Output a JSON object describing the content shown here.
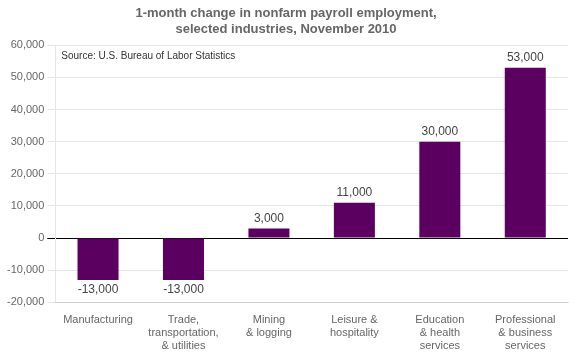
{
  "chart_data": {
    "type": "bar",
    "title": "1-month change in nonfarm payroll employment,\nselected industries, November 2010",
    "annotation": "Source: U.S. Bureau of Labor Statistics",
    "categories": [
      "Manufacturing",
      "Trade,\ntransportation,\n& utilities",
      "Mining\n& logging",
      "Leisure &\nhospitality",
      "Education\n& health\nservices",
      "Professional\n& business\nservices"
    ],
    "values": [
      -13000,
      -13000,
      3000,
      11000,
      30000,
      53000
    ],
    "value_labels": [
      "-13,000",
      "-13,000",
      "3,000",
      "11,000",
      "30,000",
      "53,000"
    ],
    "data_labels": true,
    "color": "#5b0060",
    "ylim": [
      -20000,
      60000
    ],
    "yticks": [
      {
        "value": -20000,
        "label": "-20,000"
      },
      {
        "value": -10000,
        "label": "-10,000"
      },
      0,
      {
        "value": 10000,
        "label": "10,000"
      },
      {
        "value": 20000,
        "label": "20,000"
      },
      {
        "value": 30000,
        "label": "30,000"
      },
      {
        "value": 40000,
        "label": "40,000"
      },
      {
        "value": 50000,
        "label": "50,000"
      },
      {
        "value": 60000,
        "label": "60,000"
      }
    ],
    "grid": true
  }
}
